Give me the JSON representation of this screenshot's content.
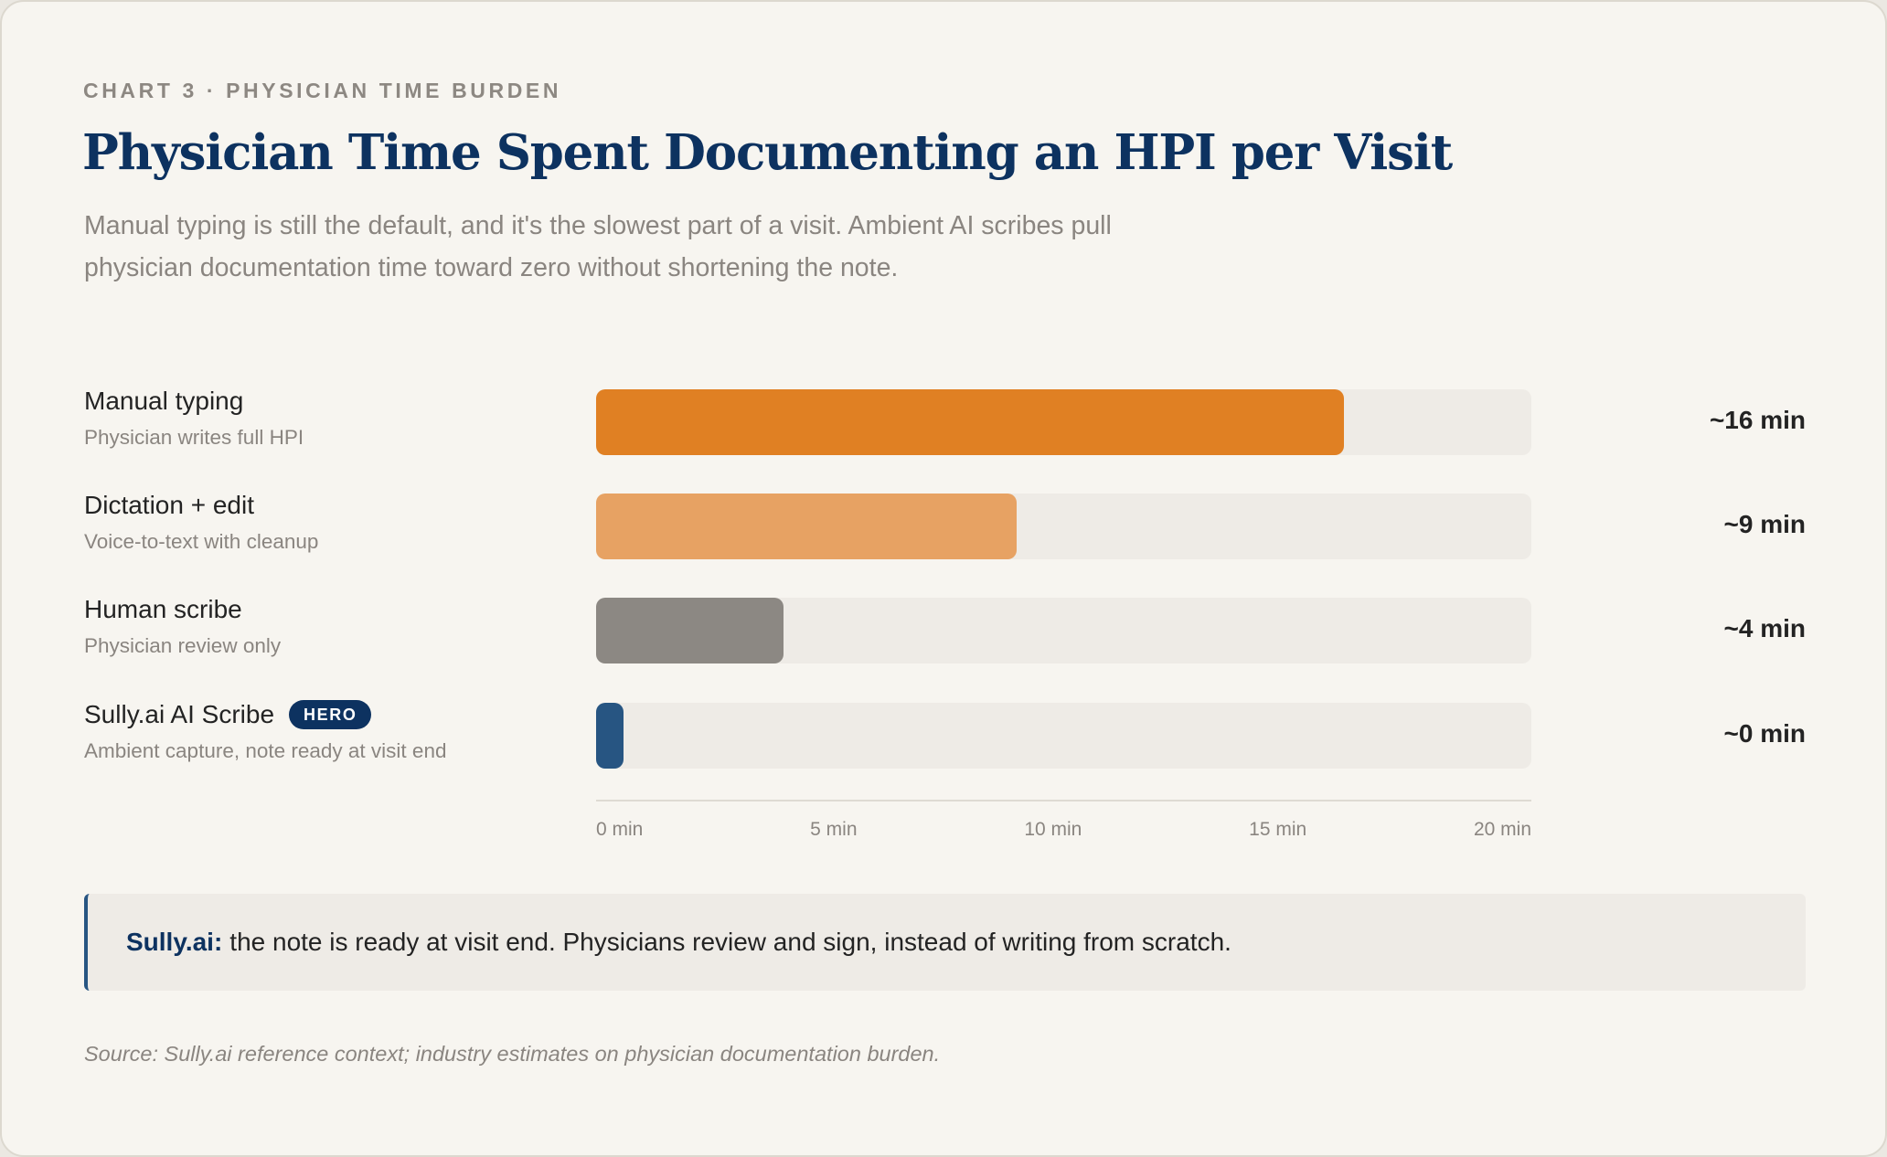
{
  "header": {
    "eyebrow": "CHART 3 · PHYSICIAN TIME BURDEN",
    "title": "Physician Time Spent Documenting an HPI per Visit",
    "subtitle": "Manual typing is still the default, and it's the slowest part of a visit. Ambient AI scribes pull physician documentation time toward zero without shortening the note."
  },
  "rows": [
    {
      "label": "Manual typing",
      "sublabel": "Physician writes full HPI",
      "value_label": "~16 min",
      "value": 16,
      "color": "#e08023",
      "badge": ""
    },
    {
      "label": "Dictation + edit",
      "sublabel": "Voice-to-text with cleanup",
      "value_label": "~9 min",
      "value": 9,
      "color": "#e7a263",
      "badge": ""
    },
    {
      "label": "Human scribe",
      "sublabel": "Physician review only",
      "value_label": "~4 min",
      "value": 4,
      "color": "#8c8883",
      "badge": ""
    },
    {
      "label": "Sully.ai AI Scribe",
      "sublabel": "Ambient capture, note ready at visit end",
      "value_label": "~0 min",
      "value": 0,
      "color": "#275582",
      "badge": "HERO"
    }
  ],
  "axis": {
    "ticks": [
      "0 min",
      "5 min",
      "10 min",
      "15 min",
      "20 min"
    ]
  },
  "callout": {
    "brand": "Sully.ai:",
    "text": "the note is ready at visit end. Physicians review and sign, instead of writing from scratch."
  },
  "source": "Source: Sully.ai reference context; industry estimates on physician documentation burden.",
  "colors": {
    "navy": "#0d3260",
    "manual": "#e08023",
    "dictation": "#e7a263",
    "human": "#8c8883",
    "sully": "#275582",
    "track": "#eeebe6",
    "background": "#f7f5f0"
  },
  "chart_data": {
    "type": "bar",
    "orientation": "horizontal",
    "title": "Physician Time Spent Documenting an HPI per Visit",
    "subtitle": "Manual typing is still the default, and it's the slowest part of a visit. Ambient AI scribes pull physician documentation time toward zero without shortening the note.",
    "categories": [
      "Manual typing",
      "Dictation + edit",
      "Human scribe",
      "Sully.ai AI Scribe"
    ],
    "category_descriptions": [
      "Physician writes full HPI",
      "Voice-to-text with cleanup",
      "Physician review only",
      "Ambient capture, note ready at visit end"
    ],
    "values": [
      16,
      9,
      4,
      0
    ],
    "value_labels": [
      "~16 min",
      "~9 min",
      "~4 min",
      "~0 min"
    ],
    "colors": [
      "#e08023",
      "#e7a263",
      "#8c8883",
      "#275582"
    ],
    "highlight": {
      "category": "Sully.ai AI Scribe",
      "badge": "HERO"
    },
    "xlabel": "",
    "ylabel": "",
    "xlim": [
      0,
      20
    ],
    "xticks": [
      "0 min",
      "5 min",
      "10 min",
      "15 min",
      "20 min"
    ],
    "grid": false,
    "legend": null,
    "annotation": "Sully.ai: the note is ready at visit end. Physicians review and sign, instead of writing from scratch.",
    "source": "Source: Sully.ai reference context; industry estimates on physician documentation burden."
  }
}
